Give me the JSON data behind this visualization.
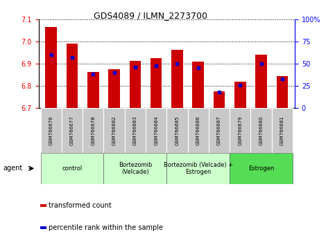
{
  "title": "GDS4089 / ILMN_2273700",
  "samples": [
    "GSM766676",
    "GSM766677",
    "GSM766678",
    "GSM766682",
    "GSM766683",
    "GSM766684",
    "GSM766685",
    "GSM766686",
    "GSM766687",
    "GSM766679",
    "GSM766680",
    "GSM766681"
  ],
  "transformed_counts": [
    7.065,
    6.99,
    6.862,
    6.875,
    6.912,
    6.925,
    6.962,
    6.908,
    6.775,
    6.82,
    6.942,
    6.845
  ],
  "percentile_ranks": [
    60,
    57,
    38,
    40,
    46,
    48,
    50,
    45,
    18,
    26,
    50,
    33
  ],
  "ylim_left": [
    6.7,
    7.1
  ],
  "ylim_right": [
    0,
    100
  ],
  "left_ticks": [
    6.7,
    6.8,
    6.9,
    7.0,
    7.1
  ],
  "right_ticks": [
    0,
    25,
    50,
    75,
    100
  ],
  "right_tick_labels": [
    "0",
    "25",
    "50",
    "75",
    "100%"
  ],
  "bar_color": "#cc0000",
  "dot_color": "#0000cc",
  "agent_groups": [
    {
      "label": "control",
      "start": 0,
      "end": 3,
      "color": "#ccffcc"
    },
    {
      "label": "Bortezomib\n(Velcade)",
      "start": 3,
      "end": 6,
      "color": "#ccffcc"
    },
    {
      "label": "Bortezomib (Velcade) +\nEstrogen",
      "start": 6,
      "end": 9,
      "color": "#ccffcc"
    },
    {
      "label": "Estrogen",
      "start": 9,
      "end": 12,
      "color": "#55dd55"
    }
  ],
  "legend_bar_label": "transformed count",
  "legend_dot_label": "percentile rank within the sample",
  "bar_width": 0.55,
  "title_fontsize": 9,
  "tick_fontsize": 7,
  "sample_fontsize": 5,
  "group_fontsize": 6,
  "legend_fontsize": 7
}
